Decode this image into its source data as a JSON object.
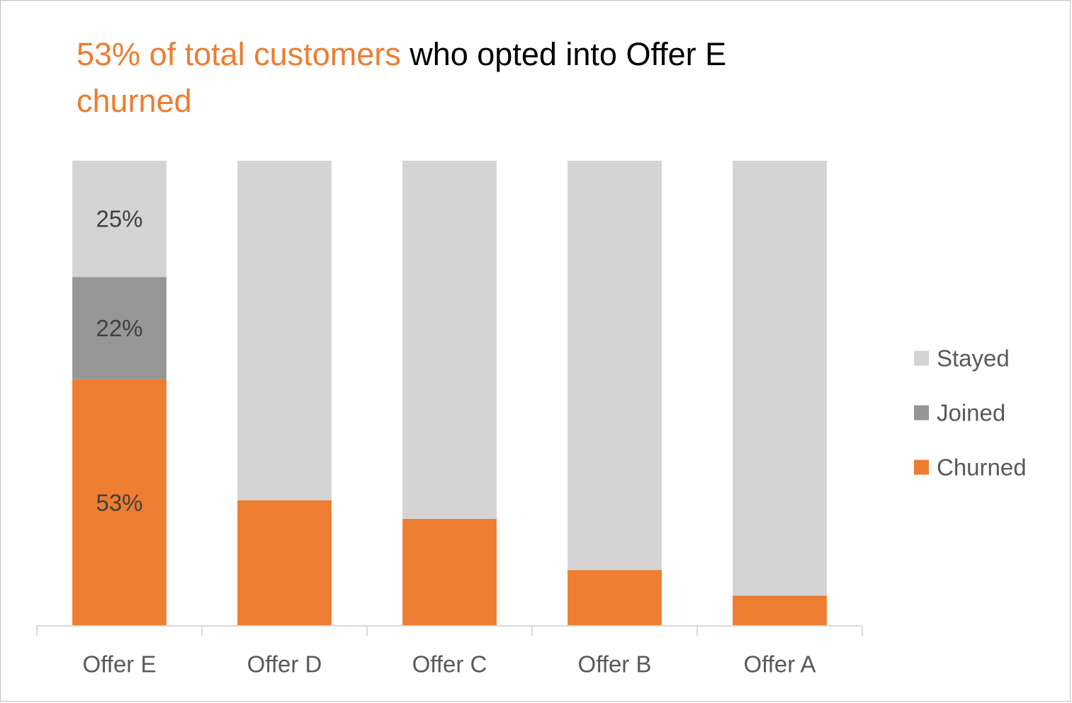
{
  "chart_data": {
    "type": "bar",
    "stacked": true,
    "title_highlight": "53% of total customers",
    "title_rest": " who opted into Offer E",
    "title_highlight_2": "churned",
    "categories": [
      "Offer E",
      "Offer D",
      "Offer C",
      "Offer B",
      "Offer A"
    ],
    "series": [
      {
        "name": "Churned",
        "values": [
          53,
          27,
          23,
          12,
          6.5
        ],
        "color": "#ED7D31"
      },
      {
        "name": "Joined",
        "values": [
          22,
          0,
          0,
          0,
          0
        ],
        "color": "#969696"
      },
      {
        "name": "Stayed",
        "values": [
          25,
          73,
          77,
          88,
          93.5
        ],
        "color": "#D4D4D4"
      }
    ],
    "data_labels": [
      {
        "category": "Offer E",
        "series": "Stayed",
        "text": "25%"
      },
      {
        "category": "Offer E",
        "series": "Joined",
        "text": "22%"
      },
      {
        "category": "Offer E",
        "series": "Churned",
        "text": "53%"
      }
    ],
    "legend_order": [
      "Stayed",
      "Joined",
      "Churned"
    ],
    "legend_position": "right",
    "ylim": [
      0,
      100
    ],
    "grid": false,
    "y_axis_visible": false
  }
}
